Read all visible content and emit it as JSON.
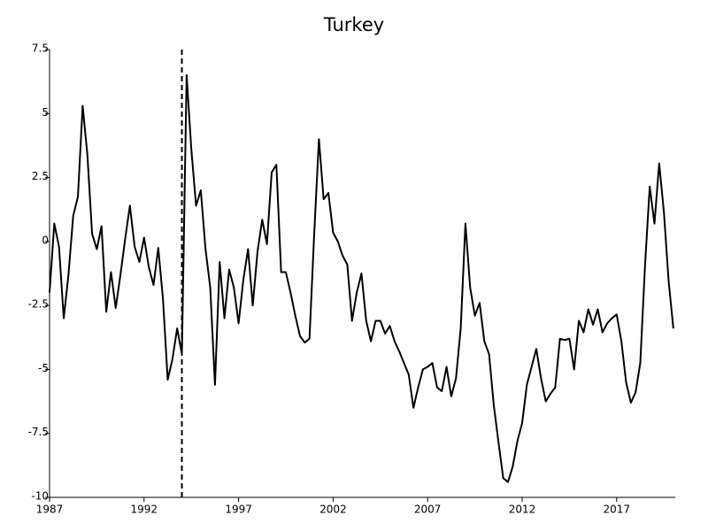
{
  "chart_data": {
    "type": "line",
    "title": "Turkey",
    "x": [
      1987,
      1987.25,
      1987.5,
      1987.75,
      1988,
      1988.25,
      1988.5,
      1988.75,
      1989,
      1989.25,
      1989.5,
      1989.75,
      1990,
      1990.25,
      1990.5,
      1990.75,
      1991,
      1991.25,
      1991.5,
      1991.75,
      1992,
      1992.25,
      1992.5,
      1992.75,
      1993,
      1993.25,
      1993.5,
      1993.75,
      1994,
      1994.25,
      1994.5,
      1994.75,
      1995,
      1995.25,
      1995.5,
      1995.75,
      1996,
      1996.25,
      1996.5,
      1996.75,
      1997,
      1997.25,
      1997.5,
      1997.75,
      1998,
      1998.25,
      1998.5,
      1998.75,
      1999,
      1999.25,
      1999.5,
      1999.75,
      2000,
      2000.25,
      2000.5,
      2000.75,
      2001,
      2001.25,
      2001.5,
      2001.75,
      2002,
      2002.25,
      2002.5,
      2002.75,
      2003,
      2003.25,
      2003.5,
      2003.75,
      2004,
      2004.25,
      2004.5,
      2004.75,
      2005,
      2005.25,
      2005.5,
      2005.75,
      2006,
      2006.25,
      2006.5,
      2006.75,
      2007,
      2007.25,
      2007.5,
      2007.75,
      2008,
      2008.25,
      2008.5,
      2008.75,
      2009,
      2009.25,
      2009.5,
      2009.75,
      2010,
      2010.25,
      2010.5,
      2010.75,
      2011,
      2011.25,
      2011.5,
      2011.75,
      2012,
      2012.25,
      2012.5,
      2012.75,
      2013,
      2013.25,
      2013.5,
      2013.75,
      2014,
      2014.25,
      2014.5,
      2014.75,
      2015,
      2015.25,
      2015.5,
      2015.75,
      2016,
      2016.25,
      2016.5,
      2016.75,
      2017,
      2017.25,
      2017.5,
      2017.75,
      2018,
      2018.25,
      2018.5,
      2018.75,
      2019,
      2019.25,
      2019.5,
      2019.75,
      2020
    ],
    "values": [
      -2.0,
      0.7,
      -0.2,
      -3.0,
      -1.3,
      1.0,
      1.75,
      5.3,
      3.4,
      0.3,
      -0.3,
      0.6,
      -2.75,
      -1.2,
      -2.6,
      -1.3,
      0.1,
      1.4,
      -0.2,
      -0.8,
      0.15,
      -1.0,
      -1.7,
      -0.25,
      -2.25,
      -5.4,
      -4.6,
      -3.4,
      -4.4,
      6.5,
      3.6,
      1.4,
      2.0,
      -0.3,
      -1.8,
      -5.6,
      -0.8,
      -3.0,
      -1.1,
      -1.8,
      -3.2,
      -1.5,
      -0.3,
      -2.5,
      -0.4,
      0.85,
      -0.1,
      2.7,
      3.0,
      -1.2,
      -1.2,
      -2.0,
      -2.9,
      -3.7,
      -3.95,
      -3.8,
      0.3,
      4.0,
      1.65,
      1.9,
      0.35,
      0.0,
      -0.55,
      -0.9,
      -3.1,
      -2.0,
      -1.25,
      -3.1,
      -3.9,
      -3.1,
      -3.1,
      -3.6,
      -3.3,
      -3.9,
      -4.3,
      -4.75,
      -5.2,
      -6.5,
      -5.7,
      -5.0,
      -4.9,
      -4.75,
      -5.7,
      -5.85,
      -4.9,
      -6.05,
      -5.35,
      -3.4,
      0.7,
      -1.8,
      -2.9,
      -2.4,
      -3.9,
      -4.4,
      -6.4,
      -7.85,
      -9.25,
      -9.4,
      -8.8,
      -7.8,
      -7.1,
      -5.6,
      -4.9,
      -4.2,
      -5.35,
      -6.25,
      -5.95,
      -5.7,
      -3.8,
      -3.85,
      -3.8,
      -5.0,
      -3.1,
      -3.55,
      -2.65,
      -3.25,
      -2.65,
      -3.55,
      -3.2,
      -3.0,
      -2.85,
      -3.9,
      -5.5,
      -6.3,
      -5.9,
      -4.75,
      -0.95,
      2.15,
      0.7,
      3.05,
      1.15,
      -1.55,
      -3.4
    ],
    "color": "#000000",
    "vline": 1994,
    "xlim": [
      1987,
      2020.1
    ],
    "xticks": [
      1987,
      1992,
      1997,
      2002,
      2007,
      2012,
      2017
    ],
    "ylim": [
      -10,
      7.5
    ],
    "yticks": [
      -10,
      -7.5,
      -5,
      -2.5,
      0,
      2.5,
      5,
      7.5
    ],
    "grid": false
  }
}
